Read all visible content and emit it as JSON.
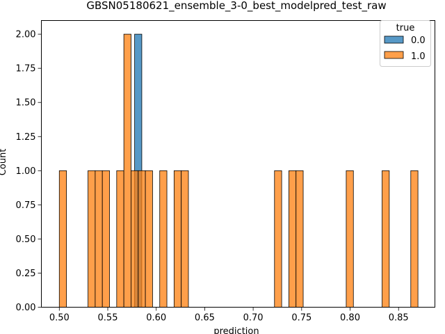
{
  "chart_data": {
    "type": "bar",
    "title": "GBSN05180621_ensemble_3-0_best_modelpred_test_raw",
    "xlabel": "prediction",
    "ylabel": "Count",
    "xlim": [
      0.4815,
      0.8875
    ],
    "ylim": [
      0,
      2.1
    ],
    "bin_width": 0.0074,
    "xticks": [
      0.5,
      0.55,
      0.6,
      0.65,
      0.7,
      0.75,
      0.8,
      0.85
    ],
    "xtick_labels": [
      "0.50",
      "0.55",
      "0.60",
      "0.65",
      "0.70",
      "0.75",
      "0.80",
      "0.85"
    ],
    "yticks": [
      0.0,
      0.25,
      0.5,
      0.75,
      1.0,
      1.25,
      1.5,
      1.75,
      2.0
    ],
    "ytick_labels": [
      "0.00",
      "0.25",
      "0.50",
      "0.75",
      "1.00",
      "1.25",
      "1.50",
      "1.75",
      "2.00"
    ],
    "legend": {
      "title": "true",
      "placement": "top-right",
      "entries": [
        "0.0",
        "1.0"
      ]
    },
    "series": [
      {
        "name": "0.0",
        "color": "#1f77b4",
        "bins": [
          {
            "x": 0.5777,
            "count": 2
          }
        ]
      },
      {
        "name": "1.0",
        "color": "#ff7f0e",
        "bins": [
          {
            "x": 0.5,
            "count": 1
          },
          {
            "x": 0.5296,
            "count": 1
          },
          {
            "x": 0.537,
            "count": 1
          },
          {
            "x": 0.5444,
            "count": 1
          },
          {
            "x": 0.5592,
            "count": 1
          },
          {
            "x": 0.5666,
            "count": 2
          },
          {
            "x": 0.574,
            "count": 1
          },
          {
            "x": 0.5814,
            "count": 1
          },
          {
            "x": 0.5888,
            "count": 1
          },
          {
            "x": 0.6036,
            "count": 1
          },
          {
            "x": 0.6184,
            "count": 1
          },
          {
            "x": 0.6258,
            "count": 1
          },
          {
            "x": 0.722,
            "count": 1
          },
          {
            "x": 0.7368,
            "count": 1
          },
          {
            "x": 0.7442,
            "count": 1
          },
          {
            "x": 0.796,
            "count": 1
          },
          {
            "x": 0.833,
            "count": 1
          },
          {
            "x": 0.8626,
            "count": 1
          }
        ]
      }
    ]
  }
}
